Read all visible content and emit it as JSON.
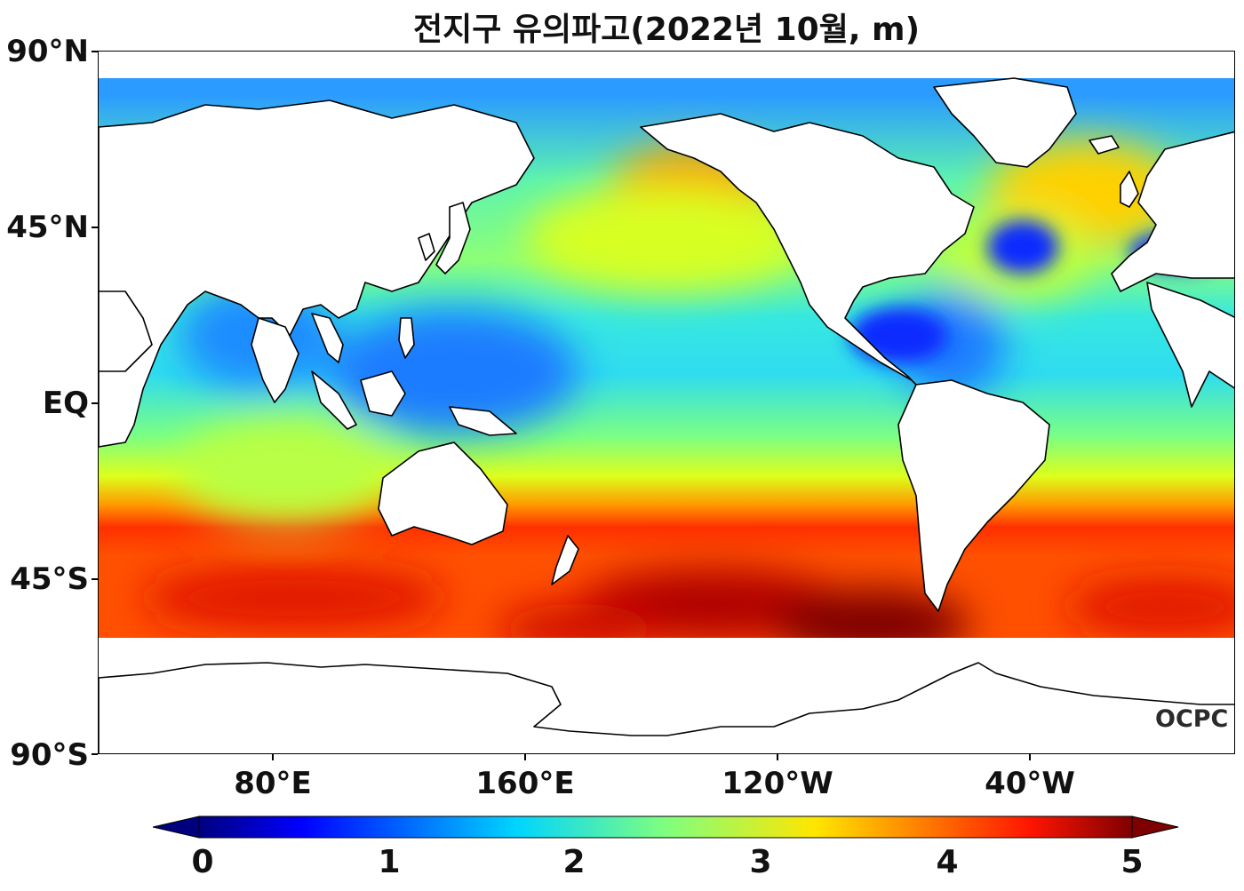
{
  "title": "전지구 유의파고(2022년 10월, m)",
  "y_axis_labels": [
    "90°N",
    "45°N",
    "EQ",
    "45°S",
    "90°S"
  ],
  "x_axis_labels": [
    "80°E",
    "160°E",
    "120°W",
    "40°W"
  ],
  "colorbar": {
    "tick_labels": [
      "0",
      "1",
      "2",
      "3",
      "4",
      "5"
    ],
    "range": [
      0,
      5
    ],
    "colormap": "jet",
    "colors": [
      "#00007f",
      "#0000ff",
      "#007fff",
      "#00ffff",
      "#7fff7f",
      "#ffff00",
      "#ff7f00",
      "#ff0000",
      "#7f0000"
    ]
  },
  "logo": "OCPC",
  "land_color": "#ffffff",
  "coastline_color": "#000000"
}
